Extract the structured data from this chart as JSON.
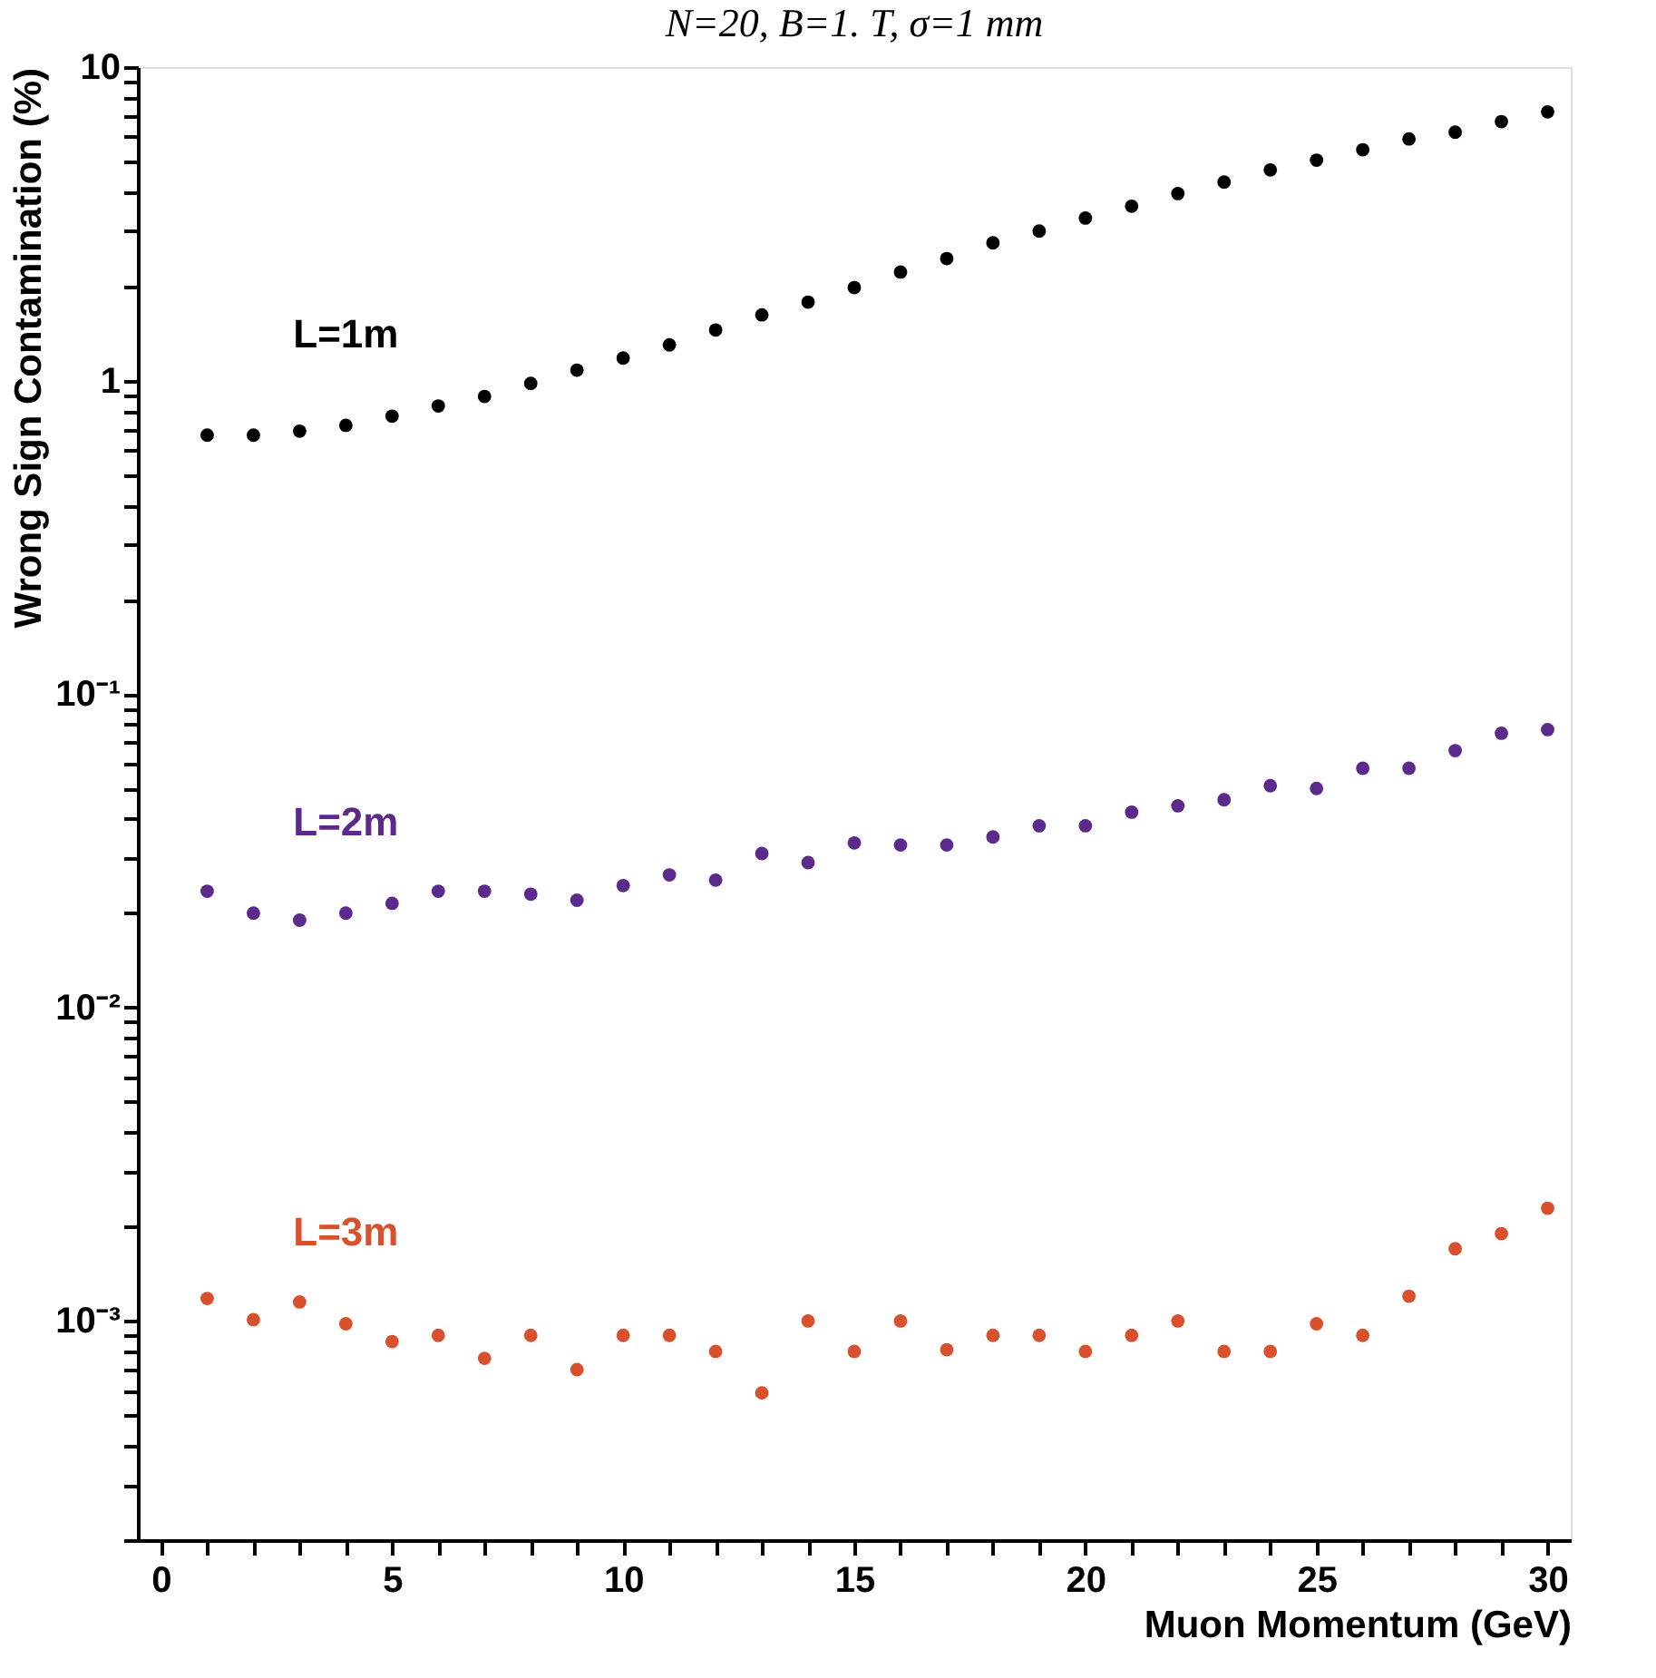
{
  "chart_data": {
    "type": "scatter",
    "title": "N=20, B=1. T, σ=1 mm",
    "xlabel": "Muon Momentum (GeV)",
    "ylabel": "Wrong Sign Contamination (%)",
    "x": [
      1,
      2,
      3,
      4,
      5,
      6,
      7,
      8,
      9,
      10,
      11,
      12,
      13,
      14,
      15,
      16,
      17,
      18,
      19,
      20,
      21,
      22,
      23,
      24,
      25,
      26,
      27,
      28,
      29,
      30
    ],
    "series": [
      {
        "name": "L=1m",
        "color": "#000000",
        "values": [
          0.67,
          0.67,
          0.69,
          0.72,
          0.77,
          0.83,
          0.89,
          0.98,
          1.08,
          1.18,
          1.3,
          1.45,
          1.62,
          1.78,
          1.98,
          2.22,
          2.45,
          2.75,
          3.0,
          3.3,
          3.6,
          3.95,
          4.3,
          4.7,
          5.05,
          5.45,
          5.9,
          6.2,
          6.7,
          7.2
        ]
      },
      {
        "name": "L=2m",
        "color": "#5b2a8c",
        "values": [
          0.0235,
          0.02,
          0.019,
          0.02,
          0.0215,
          0.0235,
          0.0235,
          0.023,
          0.022,
          0.0245,
          0.0265,
          0.0255,
          0.031,
          0.029,
          0.0335,
          0.033,
          0.033,
          0.035,
          0.038,
          0.038,
          0.042,
          0.044,
          0.046,
          0.051,
          0.05,
          0.058,
          0.058,
          0.066,
          0.075,
          0.077
        ]
      },
      {
        "name": "L=3m",
        "color": "#d9512c",
        "values": [
          0.00118,
          0.00101,
          0.00115,
          0.00098,
          0.00086,
          0.0009,
          0.00076,
          0.0009,
          0.0007,
          0.0009,
          0.0009,
          0.0008,
          0.00059,
          0.001,
          0.0008,
          0.001,
          0.00081,
          0.0009,
          0.0009,
          0.0008,
          0.0009,
          0.001,
          0.0008,
          0.0008,
          0.00098,
          0.0009,
          0.0012,
          0.0017,
          0.0019,
          0.00229
        ]
      }
    ],
    "xlim": [
      -0.5,
      30.5
    ],
    "xticks": [
      0,
      {
        "value": 1,
        "label": null
      },
      {
        "value": 2,
        "label": null
      },
      {
        "value": 3,
        "label": null
      },
      {
        "value": 4,
        "label": null
      },
      5,
      {
        "value": 6,
        "label": null
      },
      {
        "value": 7,
        "label": null
      },
      {
        "value": 8,
        "label": null
      },
      {
        "value": 9,
        "label": null
      },
      10,
      {
        "value": 11,
        "label": null
      },
      {
        "value": 12,
        "label": null
      },
      {
        "value": 13,
        "label": null
      },
      {
        "value": 14,
        "label": null
      },
      15,
      {
        "value": 16,
        "label": null
      },
      {
        "value": 17,
        "label": null
      },
      {
        "value": 18,
        "label": null
      },
      {
        "value": 19,
        "label": null
      },
      20,
      {
        "value": 21,
        "label": null
      },
      {
        "value": 22,
        "label": null
      },
      {
        "value": 23,
        "label": null
      },
      {
        "value": 24,
        "label": null
      },
      25,
      {
        "value": 26,
        "label": null
      },
      {
        "value": 27,
        "label": null
      },
      {
        "value": 28,
        "label": null
      },
      {
        "value": 29,
        "label": null
      },
      30
    ],
    "ylim": [
      0.0002,
      10
    ],
    "yticks": [
      {
        "value": 0.0002,
        "label": null
      },
      {
        "value": 0.0003,
        "label": null
      },
      {
        "value": 0.0004,
        "label": null
      },
      {
        "value": 0.0005,
        "label": null
      },
      {
        "value": 0.0006,
        "label": null
      },
      {
        "value": 0.0007,
        "label": null
      },
      {
        "value": 0.0008,
        "label": null
      },
      {
        "value": 0.0009,
        "label": null
      },
      {
        "value": 0.001,
        "label": "10⁻³"
      },
      {
        "value": 0.002,
        "label": null
      },
      {
        "value": 0.003,
        "label": null
      },
      {
        "value": 0.004,
        "label": null
      },
      {
        "value": 0.005,
        "label": null
      },
      {
        "value": 0.006,
        "label": null
      },
      {
        "value": 0.007,
        "label": null
      },
      {
        "value": 0.008,
        "label": null
      },
      {
        "value": 0.009,
        "label": null
      },
      {
        "value": 0.01,
        "label": "10⁻²"
      },
      {
        "value": 0.02,
        "label": null
      },
      {
        "value": 0.03,
        "label": null
      },
      {
        "value": 0.04,
        "label": null
      },
      {
        "value": 0.05,
        "label": null
      },
      {
        "value": 0.06,
        "label": null
      },
      {
        "value": 0.07,
        "label": null
      },
      {
        "value": 0.08,
        "label": null
      },
      {
        "value": 0.09,
        "label": null
      },
      {
        "value": 0.1,
        "label": "10⁻¹"
      },
      {
        "value": 0.2,
        "label": null
      },
      {
        "value": 0.3,
        "label": null
      },
      {
        "value": 0.4,
        "label": null
      },
      {
        "value": 0.5,
        "label": null
      },
      {
        "value": 0.6,
        "label": null
      },
      {
        "value": 0.7,
        "label": null
      },
      {
        "value": 0.8,
        "label": null
      },
      {
        "value": 0.9,
        "label": null
      },
      1,
      {
        "value": 2,
        "label": null
      },
      {
        "value": 3,
        "label": null
      },
      {
        "value": 4,
        "label": null
      },
      {
        "value": 5,
        "label": null
      },
      {
        "value": 6,
        "label": null
      },
      {
        "value": 7,
        "label": null
      },
      {
        "value": 8,
        "label": null
      },
      {
        "value": 9,
        "label": null
      },
      10
    ],
    "log": true,
    "grid": false,
    "legend": false,
    "marker": "circle"
  }
}
